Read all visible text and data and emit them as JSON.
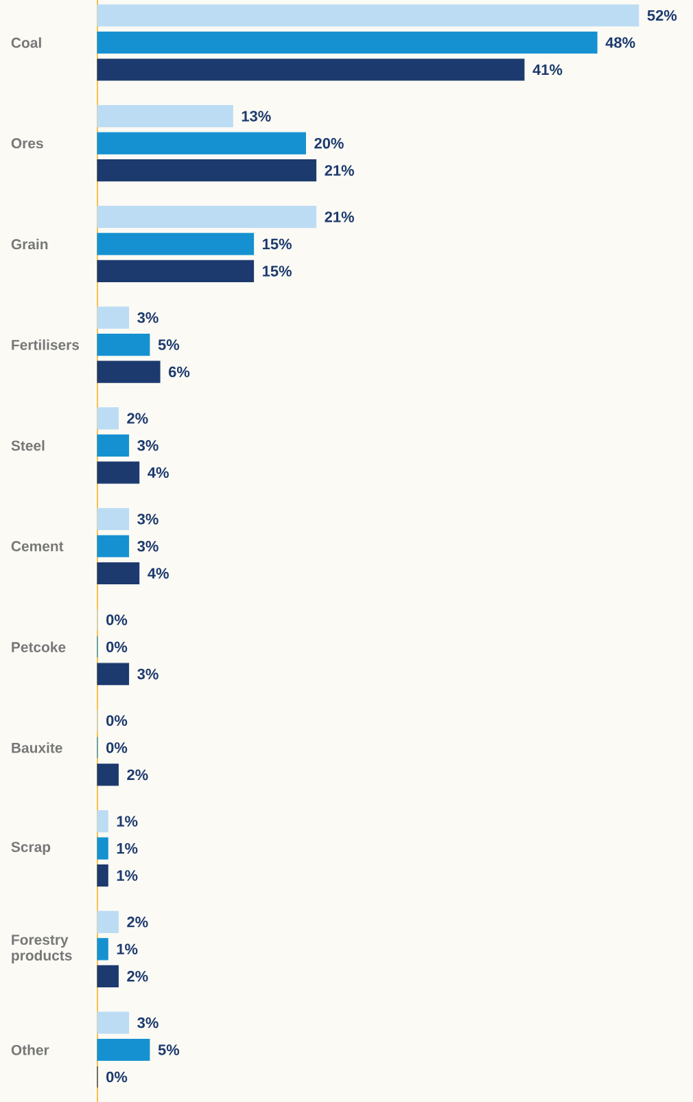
{
  "chart_data": {
    "type": "bar",
    "orientation": "horizontal",
    "categories": [
      "Coal",
      "Ores",
      "Grain",
      "Fertilisers",
      "Steel",
      "Cement",
      "Petcoke",
      "Bauxite",
      "Scrap",
      "Forestry products",
      "Other"
    ],
    "series": [
      {
        "color": "#bcdcf4",
        "values": [
          52,
          13,
          21,
          3,
          2,
          3,
          0,
          0,
          1,
          2,
          3
        ],
        "value_labels": [
          "52%",
          "13%",
          "21%",
          "3%",
          "2%",
          "3%",
          "0%",
          "0%",
          "1%",
          "2%",
          "3%"
        ]
      },
      {
        "color": "#1591d1",
        "values": [
          48,
          20,
          15,
          5,
          3,
          3,
          0,
          0,
          1,
          1,
          5
        ],
        "value_labels": [
          "48%",
          "20%",
          "15%",
          "5%",
          "3%",
          "3%",
          "0%",
          "0%",
          "1%",
          "1%",
          "5%"
        ]
      },
      {
        "color": "#1d3a6e",
        "values": [
          41,
          21,
          15,
          6,
          4,
          4,
          3,
          2,
          1,
          2,
          0
        ],
        "value_labels": [
          "41%",
          "21%",
          "15%",
          "6%",
          "4%",
          "4%",
          "3%",
          "2%",
          "1%",
          "2%",
          "0%"
        ]
      }
    ]
  }
}
